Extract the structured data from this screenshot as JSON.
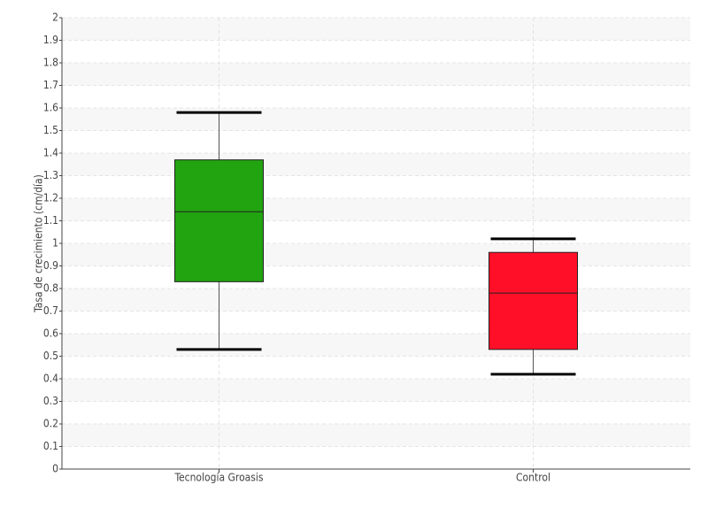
{
  "chart_data": {
    "type": "box",
    "y_label": "Tasa de crecimiento (cm/día)",
    "categories": [
      "Tecnología Groasis",
      "Control"
    ],
    "boxes": [
      {
        "low": 0.53,
        "q1": 0.83,
        "median": 1.14,
        "q3": 1.37,
        "high": 1.58,
        "color": "#22a410"
      },
      {
        "low": 0.42,
        "q1": 0.53,
        "median": 0.78,
        "q3": 0.96,
        "high": 1.02,
        "color": "#ff0f28"
      }
    ],
    "ylim": [
      0,
      2
    ],
    "yticks": [
      0,
      0.1,
      0.2,
      0.3,
      0.4,
      0.5,
      0.6,
      0.7,
      0.8,
      0.9,
      1,
      1.1,
      1.2,
      1.3,
      1.4,
      1.5,
      1.6,
      1.7,
      1.8,
      1.9,
      2
    ],
    "grid": true
  }
}
